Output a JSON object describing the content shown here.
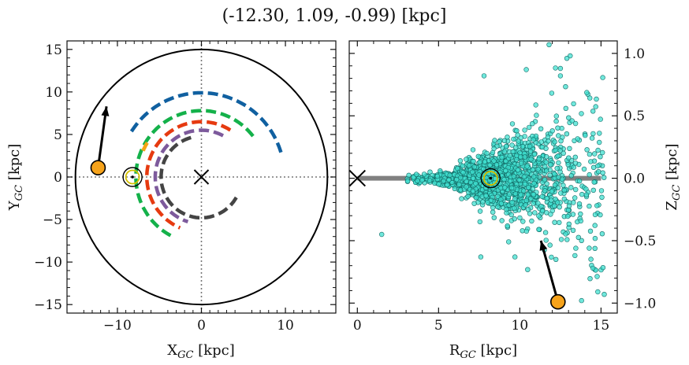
{
  "figure": {
    "title": "(-12.30, 1.09, -0.99) [kpc]"
  },
  "chart_data": [
    {
      "type": "line",
      "panel": "left",
      "xlabel_main": "X",
      "xlabel_sub": "GC",
      "xlabel_unit": " [kpc]",
      "ylabel_main": "Y",
      "ylabel_sub": "GC",
      "ylabel_unit": " [kpc]",
      "xlim": [
        -16,
        16
      ],
      "ylim": [
        -16,
        16
      ],
      "xticks": [
        -10,
        0,
        10
      ],
      "yticks": [
        -15,
        -10,
        -5,
        0,
        5,
        10,
        15
      ],
      "tick_labels_x": [
        "−10",
        "0",
        "10"
      ],
      "tick_labels_y": [
        "−15",
        "−10",
        "−5",
        "0",
        "5",
        "10",
        "15"
      ],
      "boundary_circle_radius": 15,
      "sun": {
        "x": -8.2,
        "y": 0
      },
      "galactic_center": {
        "x": 0,
        "y": 0
      },
      "star": {
        "x": -12.3,
        "y": 1.09
      },
      "velocity_arrow": {
        "x0": -12.3,
        "y0": 1.09,
        "x1": -11.3,
        "y1": 8.3
      },
      "arms": [
        {
          "color": "#1060a0",
          "radius": 9.9,
          "angle_start": 17,
          "angle_end": 150
        },
        {
          "color": "#14b14a",
          "radius": 7.8,
          "angle_start": 38,
          "angle_end": 242
        },
        {
          "color": "#f5a414",
          "radius": 7.6,
          "angle_start": 148,
          "angle_end": 156
        },
        {
          "color": "#e63a10",
          "radius": 6.5,
          "angle_start": 58,
          "angle_end": 247
        },
        {
          "color": "#7d5a9c",
          "radius": 5.5,
          "angle_start": 62,
          "angle_end": 253
        },
        {
          "color": "#444444",
          "radius": 4.8,
          "angle_start": 105,
          "angle_end": 330
        }
      ]
    },
    {
      "type": "scatter",
      "panel": "right",
      "xlabel_main": "R",
      "xlabel_sub": "GC",
      "xlabel_unit": " [kpc]",
      "ylabel_main": "Z",
      "ylabel_sub": "GC",
      "ylabel_unit": " [kpc]",
      "xlim": [
        -0.5,
        16
      ],
      "ylim": [
        -1.08,
        1.1
      ],
      "xticks": [
        0,
        5,
        10,
        15
      ],
      "yticks": [
        -1.0,
        -0.5,
        0.0,
        0.5,
        1.0
      ],
      "tick_labels_x": [
        "0",
        "5",
        "10",
        "15"
      ],
      "tick_labels_y": [
        "−1.0",
        "−0.5",
        "0.0",
        "0.5",
        "1.0"
      ],
      "disk_plane": {
        "x0": 0,
        "x1": 15,
        "z": 0
      },
      "sun": {
        "r": 8.2,
        "z": 0
      },
      "galactic_center": {
        "r": 0,
        "z": 0
      },
      "star": {
        "r": 12.35,
        "z": -0.99
      },
      "velocity_arrow": {
        "x0": 12.35,
        "y0": -0.99,
        "x1": 11.3,
        "y1": -0.5
      },
      "point_color": "#40e0d0",
      "point_edge": "#136b66",
      "sample_points": [
        {
          "r": 11.8,
          "z": 1.07
        },
        {
          "r": 12.9,
          "z": 0.96
        },
        {
          "r": 7.8,
          "z": 0.82
        },
        {
          "r": 10.4,
          "z": 0.87
        },
        {
          "r": 12.5,
          "z": 0.82
        },
        {
          "r": 1.5,
          "z": -0.45
        },
        {
          "r": 7.6,
          "z": -0.63
        },
        {
          "r": 9.7,
          "z": -0.63
        },
        {
          "r": 14.8,
          "z": -0.91
        },
        {
          "r": 15.2,
          "z": -0.93
        },
        {
          "r": 13.8,
          "z": -0.98
        },
        {
          "r": 14.5,
          "z": -0.72
        }
      ]
    }
  ]
}
